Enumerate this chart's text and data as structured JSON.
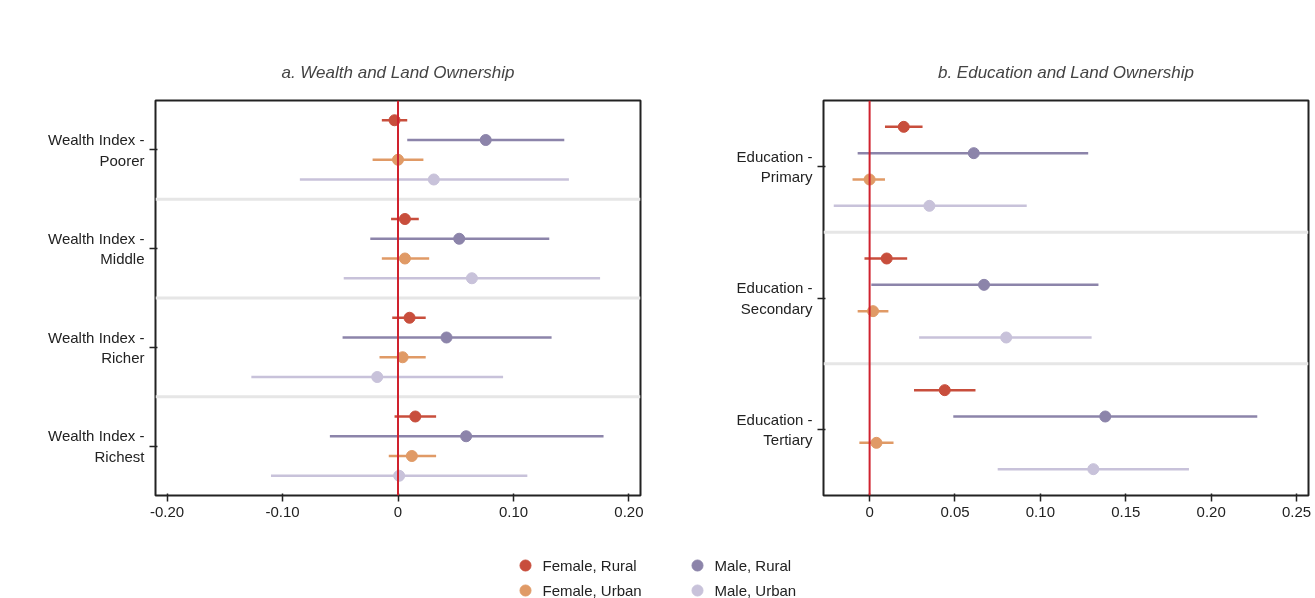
{
  "chart_data": [
    {
      "type": "scatter",
      "orientation": "horizontal",
      "title": "a. Wealth and Land Ownership",
      "categories": [
        "Wealth Index - Poorer",
        "Wealth Index - Middle",
        "Wealth Index - Richer",
        "Wealth Index - Richest"
      ],
      "series": [
        {
          "name": "Female, Rural",
          "color": "#c84e3c",
          "values": [
            -0.003,
            0.006,
            0.01,
            0.015
          ],
          "errors": [
            [
              -0.014,
              0.008
            ],
            [
              -0.006,
              0.018
            ],
            [
              -0.005,
              0.024
            ],
            [
              -0.003,
              0.033
            ]
          ]
        },
        {
          "name": "Male, Rural",
          "color": "#8c84aa",
          "values": [
            0.076,
            0.053,
            0.042,
            0.059
          ],
          "errors": [
            [
              0.008,
              0.144
            ],
            [
              -0.024,
              0.131
            ],
            [
              -0.048,
              0.133
            ],
            [
              -0.059,
              0.178
            ]
          ]
        },
        {
          "name": "Female, Urban",
          "color": "#e09a66",
          "values": [
            0.0,
            0.006,
            0.004,
            0.012
          ],
          "errors": [
            [
              -0.022,
              0.022
            ],
            [
              -0.014,
              0.027
            ],
            [
              -0.016,
              0.024
            ],
            [
              -0.008,
              0.033
            ]
          ]
        },
        {
          "name": "Male, Urban",
          "color": "#c8c2da",
          "values": [
            0.031,
            0.064,
            -0.018,
            0.001
          ],
          "errors": [
            [
              -0.085,
              0.148
            ],
            [
              -0.047,
              0.175
            ],
            [
              -0.127,
              0.091
            ],
            [
              -0.11,
              0.112
            ]
          ]
        }
      ],
      "xlim": [
        -0.21,
        0.21
      ],
      "xticks": [
        {
          "value": -0.2,
          "label": "-0.20"
        },
        {
          "value": -0.1,
          "label": "-0.10"
        },
        0,
        {
          "value": 0.1,
          "label": "0.10"
        },
        {
          "value": 0.2,
          "label": "0.20"
        }
      ],
      "ref_lines": [
        {
          "axis": "x",
          "value": 0,
          "label": null,
          "color": "#d0222e"
        }
      ],
      "marker": "circle",
      "grid": false,
      "legend": "bottom"
    },
    {
      "type": "scatter",
      "orientation": "horizontal",
      "title": "b. Education and Land Ownership",
      "categories": [
        "Education - Primary",
        "Education - Secondary",
        "Education - Tertiary"
      ],
      "series": [
        {
          "color": "#c84e3c",
          "values": [
            0.02,
            0.01,
            0.044
          ],
          "errors": [
            [
              0.009,
              0.031
            ],
            [
              -0.003,
              0.022
            ],
            [
              0.026,
              0.062
            ]
          ]
        },
        {
          "color": "#8c84aa",
          "values": [
            0.061,
            0.067,
            0.138
          ],
          "errors": [
            [
              -0.007,
              0.128
            ],
            [
              0.001,
              0.134
            ],
            [
              0.049,
              0.227
            ]
          ]
        },
        {
          "color": "#e09a66",
          "values": [
            0.0,
            0.002,
            0.004
          ],
          "errors": [
            [
              -0.01,
              0.009
            ],
            [
              -0.007,
              0.011
            ],
            [
              -0.006,
              0.014
            ]
          ]
        },
        {
          "color": "#c8c2da",
          "values": [
            0.035,
            0.08,
            0.131
          ],
          "errors": [
            [
              -0.021,
              0.092
            ],
            [
              0.029,
              0.13
            ],
            [
              0.075,
              0.187
            ]
          ]
        }
      ],
      "xlim": [
        -0.027,
        0.257
      ],
      "xticks": [
        0,
        {
          "value": 0.05,
          "label": "0.05"
        },
        {
          "value": 0.1,
          "label": "0.10"
        },
        {
          "value": 0.15,
          "label": "0.15"
        },
        {
          "value": 0.2,
          "label": "0.20"
        },
        {
          "value": 0.25,
          "label": "0.25"
        }
      ],
      "ref_lines": [
        {
          "axis": "x",
          "value": 0,
          "label": null,
          "color": "#d0222e"
        }
      ],
      "marker": "circle",
      "grid": false
    }
  ]
}
